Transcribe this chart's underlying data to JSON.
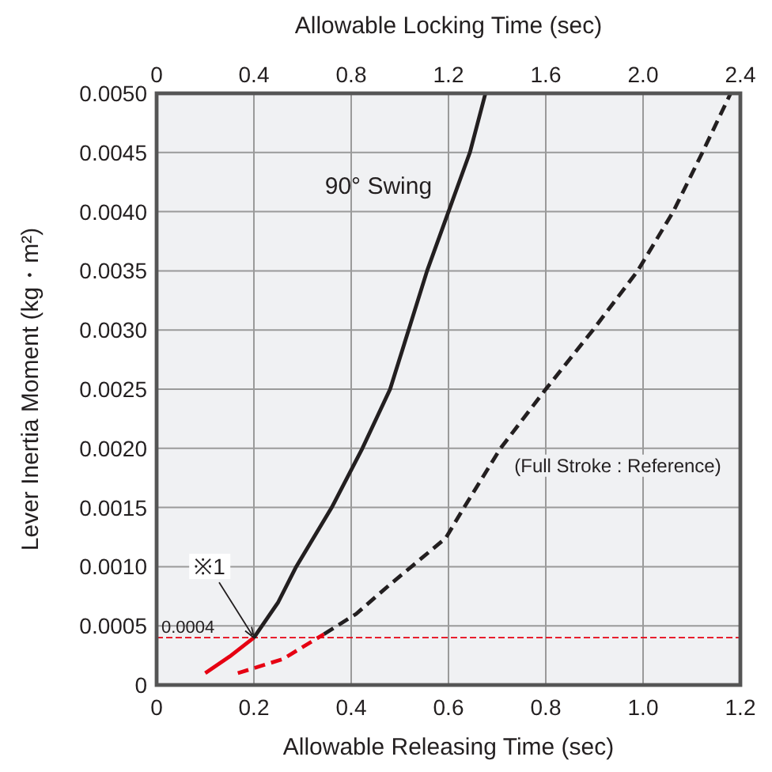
{
  "chart_data": {
    "type": "line",
    "xlabel": "Allowable Releasing Time (sec)",
    "x2label": "Allowable Locking Time (sec)",
    "ylabel": "Lever Inertia Moment  (kg・m²)",
    "xlim": [
      0,
      1.2
    ],
    "xticks": [
      0,
      0.2,
      0.4,
      0.6,
      0.8,
      {
        "value": 1,
        "label": "1.0"
      },
      1.2
    ],
    "x2lim": [
      0,
      2.4
    ],
    "x2ticks": [
      0,
      0.4,
      0.8,
      1.2,
      1.6,
      {
        "value": 2,
        "label": "2.0"
      },
      2.4
    ],
    "ylim": [
      0,
      0.005
    ],
    "yticks": [
      {
        "value": 0,
        "label": "0"
      },
      {
        "value": 0.0005,
        "label": "0.0005"
      },
      {
        "value": 0.001,
        "label": "0.0010"
      },
      {
        "value": 0.0015,
        "label": "0.0015"
      },
      {
        "value": 0.002,
        "label": "0.0020"
      },
      {
        "value": 0.0025,
        "label": "0.0025"
      },
      {
        "value": 0.003,
        "label": "0.0030"
      },
      {
        "value": 0.0035,
        "label": "0.0035"
      },
      {
        "value": 0.004,
        "label": "0.0040"
      },
      {
        "value": 0.0045,
        "label": "0.0045"
      },
      {
        "value": 0.005,
        "label": "0.0050"
      }
    ],
    "grid": true,
    "marker": "none",
    "series": [
      {
        "color": "#231f20",
        "line_style": "solid",
        "x": [
          0.2,
          0.25,
          0.287,
          0.36,
          0.423,
          0.48,
          0.518,
          0.556,
          0.6,
          0.644,
          0.676
        ],
        "values": [
          0.0004,
          0.0007,
          0.001,
          0.0015,
          0.002,
          0.0025,
          0.003,
          0.0035,
          0.004,
          0.0045,
          0.005
        ]
      },
      {
        "color": "#e60012",
        "line_style": "solid",
        "x": [
          0.1,
          0.15,
          0.2
        ],
        "values": [
          0.0001,
          0.00024,
          0.0004
        ]
      },
      {
        "color": "#231f20",
        "line_style": "dashed",
        "x": [
          0.344,
          0.41,
          0.477,
          0.594,
          0.632,
          0.707,
          0.8,
          0.897,
          0.989,
          1.062,
          1.122,
          1.18
        ],
        "values": [
          0.00043,
          0.0006,
          0.00084,
          0.00124,
          0.0015,
          0.002,
          0.0025,
          0.003,
          0.0035,
          0.004,
          0.0045,
          0.005
        ]
      },
      {
        "color": "#e60012",
        "line_style": "dashed",
        "x": [
          0.167,
          0.26,
          0.344
        ],
        "values": [
          0.0001,
          0.00022,
          0.00043
        ]
      }
    ],
    "ref_lines": [
      {
        "axis": "y",
        "value": 0.0004,
        "label": "0.0004",
        "color": "#e60012",
        "line_style": "dashed"
      }
    ],
    "annotations": [
      "90° Swing",
      "(Full Stroke : Reference)",
      {
        "text": "※1",
        "x": 0.2,
        "y": 0.0004
      }
    ]
  }
}
